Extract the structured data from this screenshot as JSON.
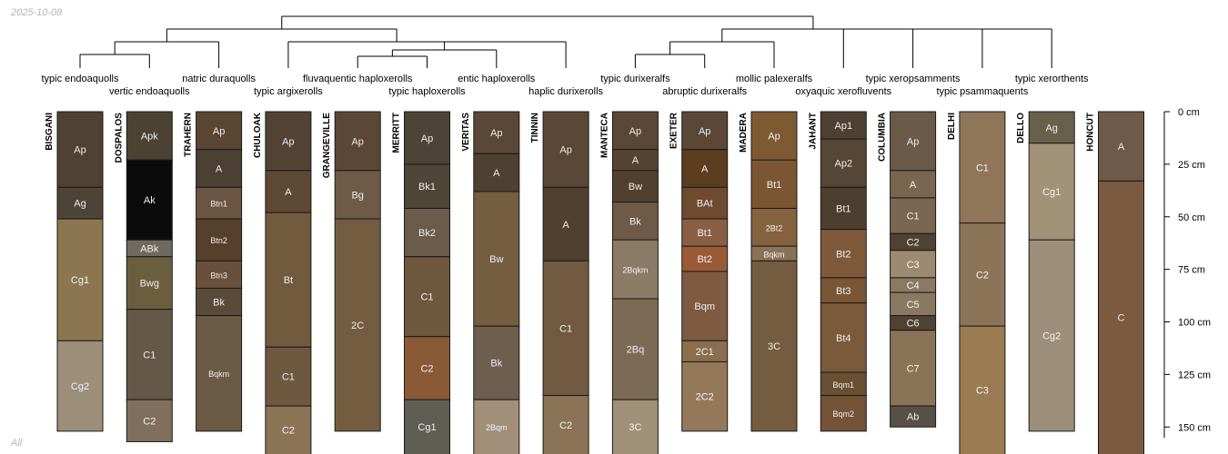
{
  "date_label": "2025-10-08",
  "footer_label": "All",
  "depth_axis": {
    "unit": "cm",
    "ticks": [
      0,
      25,
      50,
      75,
      100,
      125,
      150
    ],
    "labels": [
      "0 cm",
      "25 cm",
      "50 cm",
      "75 cm",
      "100 cm",
      "125 cm",
      "150 cm"
    ]
  },
  "taxa": [
    "typic endoaquolls",
    "vertic endoaquolls",
    "natric duraquolls",
    "typic argixerolls",
    "fluvaquentic haploxerolls",
    "typic haploxerolls",
    "entic haploxerolls",
    "haplic durixerolls",
    "typic durixeralfs",
    "abruptic durixeralfs",
    "mollic palexeralfs",
    "oxyaquic xerofluvents",
    "typic xeropsamments",
    "typic psammaquents",
    "typic xerorthents"
  ],
  "profiles": [
    {
      "name": "BISGANI",
      "horizons": [
        {
          "name": "Ap",
          "top": 0,
          "bottom": 36,
          "color": "#4f4232"
        },
        {
          "name": "Ag",
          "top": 36,
          "bottom": 51,
          "color": "#4e4436"
        },
        {
          "name": "Cg1",
          "top": 51,
          "bottom": 109,
          "color": "#8c7650"
        },
        {
          "name": "Cg2",
          "top": 109,
          "bottom": 152,
          "color": "#9c8e78"
        }
      ]
    },
    {
      "name": "DOSPALOS",
      "horizons": [
        {
          "name": "Apk",
          "top": 0,
          "bottom": 23,
          "color": "#4c4234"
        },
        {
          "name": "Ak",
          "top": 23,
          "bottom": 61,
          "color": "#0b0b0b"
        },
        {
          "name": "ABk",
          "top": 61,
          "bottom": 69,
          "color": "#6f6a60"
        },
        {
          "name": "Bwg",
          "top": 69,
          "bottom": 94,
          "color": "#6b5e3e"
        },
        {
          "name": "C1",
          "top": 94,
          "bottom": 137,
          "color": "#645847"
        },
        {
          "name": "C2",
          "top": 137,
          "bottom": 157,
          "color": "#7f6f5c"
        }
      ]
    },
    {
      "name": "TRAHERN",
      "horizons": [
        {
          "name": "Ap",
          "top": 0,
          "bottom": 18,
          "color": "#5a4633"
        },
        {
          "name": "A",
          "top": 18,
          "bottom": 36,
          "color": "#4b4033"
        },
        {
          "name": "Btn1",
          "top": 36,
          "bottom": 51,
          "color": "#6b5542"
        },
        {
          "name": "Btn2",
          "top": 51,
          "bottom": 71,
          "color": "#56402b"
        },
        {
          "name": "Btn3",
          "top": 71,
          "bottom": 84,
          "color": "#6a503a"
        },
        {
          "name": "Bk",
          "top": 84,
          "bottom": 97,
          "color": "#5a4a3a"
        },
        {
          "name": "Bqkm",
          "top": 97,
          "bottom": 152,
          "color": "#6c5b44"
        }
      ]
    },
    {
      "name": "CHULOAK",
      "horizons": [
        {
          "name": "Ap",
          "top": 0,
          "bottom": 28,
          "color": "#524335"
        },
        {
          "name": "A",
          "top": 28,
          "bottom": 48,
          "color": "#5e4934"
        },
        {
          "name": "Bt",
          "top": 48,
          "bottom": 112,
          "color": "#715a3d"
        },
        {
          "name": "C1",
          "top": 112,
          "bottom": 140,
          "color": "#6e5840"
        },
        {
          "name": "C2",
          "top": 140,
          "bottom": 168,
          "color": "#8c7457"
        }
      ]
    },
    {
      "name": "GRANGEVILLE",
      "horizons": [
        {
          "name": "Ap",
          "top": 0,
          "bottom": 28,
          "color": "#5a4735"
        },
        {
          "name": "Bg",
          "top": 28,
          "bottom": 51,
          "color": "#6e5a47"
        },
        {
          "name": "2C",
          "top": 51,
          "bottom": 152,
          "color": "#735c40"
        }
      ]
    },
    {
      "name": "MERRITT",
      "horizons": [
        {
          "name": "Ap",
          "top": 0,
          "bottom": 25,
          "color": "#4d4438"
        },
        {
          "name": "Bk1",
          "top": 25,
          "bottom": 46,
          "color": "#4f4637"
        },
        {
          "name": "Bk2",
          "top": 46,
          "bottom": 69,
          "color": "#6a5b4a"
        },
        {
          "name": "C1",
          "top": 69,
          "bottom": 107,
          "color": "#6f583d"
        },
        {
          "name": "C2",
          "top": 107,
          "bottom": 137,
          "color": "#8a5a37"
        },
        {
          "name": "Cg1",
          "top": 137,
          "bottom": 170,
          "color": "#5f5e55"
        }
      ]
    },
    {
      "name": "VERITAS",
      "horizons": [
        {
          "name": "Ap",
          "top": 0,
          "bottom": 20,
          "color": "#5a4735"
        },
        {
          "name": "A",
          "top": 20,
          "bottom": 38,
          "color": "#4d4132"
        },
        {
          "name": "Bw",
          "top": 38,
          "bottom": 102,
          "color": "#745d40"
        },
        {
          "name": "Bk",
          "top": 102,
          "bottom": 137,
          "color": "#6e5e4e"
        },
        {
          "name": "2Bqm",
          "top": 137,
          "bottom": 170,
          "color": "#a18f7a"
        }
      ]
    },
    {
      "name": "TINNIN",
      "horizons": [
        {
          "name": "Ap",
          "top": 0,
          "bottom": 36,
          "color": "#5a4735"
        },
        {
          "name": "A",
          "top": 36,
          "bottom": 71,
          "color": "#4f4030"
        },
        {
          "name": "C1",
          "top": 71,
          "bottom": 135,
          "color": "#715a3f"
        },
        {
          "name": "C2",
          "top": 135,
          "bottom": 170,
          "color": "#8a7357"
        }
      ]
    },
    {
      "name": "MANTECA",
      "horizons": [
        {
          "name": "Ap",
          "top": 0,
          "bottom": 18,
          "color": "#5a4735"
        },
        {
          "name": "A",
          "top": 18,
          "bottom": 28,
          "color": "#564433"
        },
        {
          "name": "Bw",
          "top": 28,
          "bottom": 43,
          "color": "#52402e"
        },
        {
          "name": "Bk",
          "top": 43,
          "bottom": 61,
          "color": "#6e5a47"
        },
        {
          "name": "2Bqkm",
          "top": 61,
          "bottom": 89,
          "color": "#8a7a66"
        },
        {
          "name": "2Bq",
          "top": 89,
          "bottom": 137,
          "color": "#7c6a55"
        },
        {
          "name": "3C",
          "top": 137,
          "bottom": 170,
          "color": "#a09078"
        }
      ]
    },
    {
      "name": "EXETER",
      "horizons": [
        {
          "name": "Ap",
          "top": 0,
          "bottom": 18,
          "color": "#5a4735"
        },
        {
          "name": "A",
          "top": 18,
          "bottom": 36,
          "color": "#5c3d1f"
        },
        {
          "name": "BAt",
          "top": 36,
          "bottom": 51,
          "color": "#6e4a30"
        },
        {
          "name": "Bt1",
          "top": 51,
          "bottom": 64,
          "color": "#8a5e45"
        },
        {
          "name": "Bt2",
          "top": 64,
          "bottom": 76,
          "color": "#9a5a36"
        },
        {
          "name": "Bqm",
          "top": 76,
          "bottom": 109,
          "color": "#7e5a43"
        },
        {
          "name": "2C1",
          "top": 109,
          "bottom": 119,
          "color": "#8a6e4e"
        },
        {
          "name": "2C2",
          "top": 119,
          "bottom": 152,
          "color": "#93785a"
        }
      ]
    },
    {
      "name": "MADERA",
      "horizons": [
        {
          "name": "Ap",
          "top": 0,
          "bottom": 23,
          "color": "#7e5a33"
        },
        {
          "name": "Bt1",
          "top": 23,
          "bottom": 46,
          "color": "#7a5632"
        },
        {
          "name": "2Bt2",
          "top": 46,
          "bottom": 64,
          "color": "#85633f"
        },
        {
          "name": "Bqkm",
          "top": 64,
          "bottom": 71,
          "color": "#8a7257"
        },
        {
          "name": "3C",
          "top": 71,
          "bottom": 152,
          "color": "#735c40"
        }
      ]
    },
    {
      "name": "JAHANT",
      "horizons": [
        {
          "name": "Ap1",
          "top": 0,
          "bottom": 13,
          "color": "#4e4032"
        },
        {
          "name": "Ap2",
          "top": 13,
          "bottom": 36,
          "color": "#564636"
        },
        {
          "name": "Bt1",
          "top": 36,
          "bottom": 56,
          "color": "#4d3f30"
        },
        {
          "name": "Bt2",
          "top": 56,
          "bottom": 79,
          "color": "#7e5a3b"
        },
        {
          "name": "Bt3",
          "top": 79,
          "bottom": 91,
          "color": "#7a5637"
        },
        {
          "name": "Bt4",
          "top": 91,
          "bottom": 124,
          "color": "#7a5a3a"
        },
        {
          "name": "Bqm1",
          "top": 124,
          "bottom": 135,
          "color": "#6a5033"
        },
        {
          "name": "Bqm2",
          "top": 135,
          "bottom": 152,
          "color": "#755336"
        }
      ]
    },
    {
      "name": "COLUMBIA",
      "horizons": [
        {
          "name": "Ap",
          "top": 0,
          "bottom": 28,
          "color": "#6a5a47"
        },
        {
          "name": "A",
          "top": 28,
          "bottom": 41,
          "color": "#7a6650"
        },
        {
          "name": "C1",
          "top": 41,
          "bottom": 58,
          "color": "#7a6651"
        },
        {
          "name": "C2",
          "top": 58,
          "bottom": 66,
          "color": "#4f4232"
        },
        {
          "name": "C3",
          "top": 66,
          "bottom": 79,
          "color": "#9e8a70"
        },
        {
          "name": "C4",
          "top": 79,
          "bottom": 86,
          "color": "#8a7a64"
        },
        {
          "name": "C5",
          "top": 86,
          "bottom": 97,
          "color": "#8a7861"
        },
        {
          "name": "C6",
          "top": 97,
          "bottom": 104,
          "color": "#4f4232"
        },
        {
          "name": "C7",
          "top": 104,
          "bottom": 140,
          "color": "#8a7357"
        },
        {
          "name": "Ab",
          "top": 140,
          "bottom": 150,
          "color": "#565046"
        }
      ]
    },
    {
      "name": "DELHI",
      "horizons": [
        {
          "name": "C1",
          "top": 0,
          "bottom": 53,
          "color": "#8f7659"
        },
        {
          "name": "C2",
          "top": 53,
          "bottom": 102,
          "color": "#8c7458"
        },
        {
          "name": "C3",
          "top": 102,
          "bottom": 170,
          "color": "#9a7b52"
        }
      ]
    },
    {
      "name": "DELLO",
      "horizons": [
        {
          "name": "Ag",
          "top": 0,
          "bottom": 15,
          "color": "#69604c"
        },
        {
          "name": "Cg1",
          "top": 15,
          "bottom": 61,
          "color": "#a29278"
        },
        {
          "name": "Cg2",
          "top": 61,
          "bottom": 152,
          "color": "#9c8e78"
        }
      ]
    },
    {
      "name": "HONCUT",
      "horizons": [
        {
          "name": "A",
          "top": 0,
          "bottom": 33,
          "color": "#6d5a48"
        },
        {
          "name": "C",
          "top": 33,
          "bottom": 170,
          "color": "#7a5a40"
        }
      ]
    }
  ]
}
